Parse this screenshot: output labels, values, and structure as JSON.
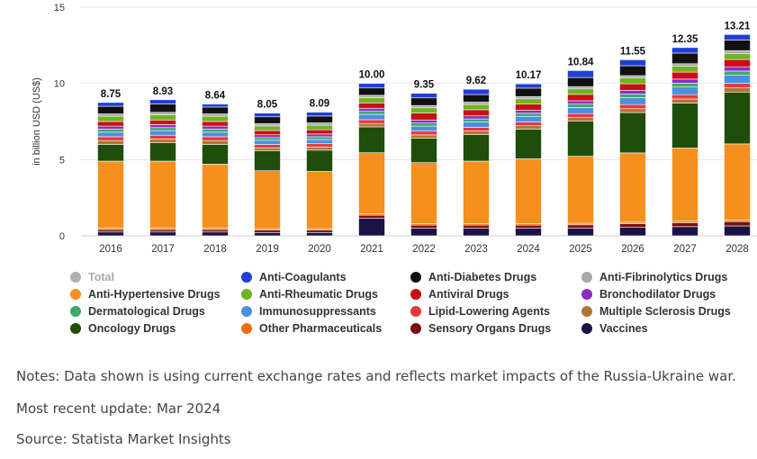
{
  "chart_data": {
    "type": "bar",
    "stacked": true,
    "ylabel": "in billion USD (US$)",
    "ylim": [
      0,
      15
    ],
    "yticks": [
      0,
      5,
      10,
      15
    ],
    "grid": true,
    "legend_position": "bottom",
    "categories": [
      "2016",
      "2017",
      "2018",
      "2019",
      "2020",
      "2021",
      "2022",
      "2023",
      "2024",
      "2025",
      "2026",
      "2027",
      "2028"
    ],
    "totals": [
      8.75,
      8.93,
      8.64,
      8.05,
      8.09,
      10.0,
      9.35,
      9.62,
      10.17,
      10.84,
      11.55,
      12.35,
      13.21
    ],
    "total_labels": [
      "8.75",
      "8.93",
      "8.64",
      "8.05",
      "8.09",
      "10.00",
      "9.35",
      "9.62",
      "10.17",
      "10.84",
      "11.55",
      "12.35",
      "13.21"
    ],
    "series": [
      {
        "name": "Vaccines",
        "color": "#1a1446",
        "values": [
          0.25,
          0.25,
          0.25,
          0.22,
          0.22,
          1.15,
          0.5,
          0.5,
          0.5,
          0.5,
          0.55,
          0.6,
          0.65
        ]
      },
      {
        "name": "Sensory Organs Drugs",
        "color": "#7a0f12",
        "values": [
          0.15,
          0.15,
          0.15,
          0.15,
          0.15,
          0.2,
          0.2,
          0.2,
          0.2,
          0.22,
          0.24,
          0.26,
          0.28
        ]
      },
      {
        "name": "Other Pharmaceuticals",
        "color": "#f26c0d",
        "values": [
          0.1,
          0.1,
          0.1,
          0.1,
          0.1,
          0.1,
          0.1,
          0.1,
          0.1,
          0.1,
          0.1,
          0.1,
          0.1
        ]
      },
      {
        "name": "Anti-Hypertensive Drugs",
        "color": "#f5901e",
        "values": [
          4.4,
          4.4,
          4.2,
          3.8,
          3.75,
          4.0,
          4.0,
          4.1,
          4.25,
          4.4,
          4.55,
          4.8,
          5.0
        ]
      },
      {
        "name": "Oncology Drugs",
        "color": "#1f4d0a",
        "values": [
          1.1,
          1.2,
          1.3,
          1.3,
          1.4,
          1.7,
          1.6,
          1.75,
          1.95,
          2.3,
          2.65,
          2.95,
          3.4
        ]
      },
      {
        "name": "Multiple Sclerosis Drugs",
        "color": "#b07530",
        "values": [
          0.25,
          0.25,
          0.25,
          0.2,
          0.2,
          0.22,
          0.22,
          0.22,
          0.22,
          0.24,
          0.25,
          0.27,
          0.28
        ]
      },
      {
        "name": "Lipid-Lowering Agents",
        "color": "#e8383d",
        "values": [
          0.25,
          0.25,
          0.25,
          0.22,
          0.22,
          0.25,
          0.25,
          0.25,
          0.25,
          0.26,
          0.27,
          0.28,
          0.3
        ]
      },
      {
        "name": "Immunosuppressants",
        "color": "#4c8fe0",
        "values": [
          0.3,
          0.3,
          0.3,
          0.28,
          0.28,
          0.35,
          0.33,
          0.35,
          0.37,
          0.4,
          0.45,
          0.5,
          0.52
        ]
      },
      {
        "name": "Dermatological Drugs",
        "color": "#3aaa6f",
        "values": [
          0.2,
          0.2,
          0.2,
          0.18,
          0.18,
          0.2,
          0.2,
          0.2,
          0.2,
          0.22,
          0.24,
          0.26,
          0.28
        ]
      },
      {
        "name": "Bronchodilator Drugs",
        "color": "#8d2bc4",
        "values": [
          0.2,
          0.2,
          0.2,
          0.18,
          0.18,
          0.2,
          0.2,
          0.2,
          0.2,
          0.22,
          0.24,
          0.26,
          0.28
        ]
      },
      {
        "name": "Antiviral Drugs",
        "color": "#cc0e12",
        "values": [
          0.3,
          0.3,
          0.3,
          0.28,
          0.28,
          0.35,
          0.45,
          0.4,
          0.4,
          0.42,
          0.44,
          0.46,
          0.48
        ]
      },
      {
        "name": "Anti-Rheumatic Drugs",
        "color": "#6eb51f",
        "values": [
          0.35,
          0.35,
          0.35,
          0.3,
          0.3,
          0.35,
          0.35,
          0.35,
          0.35,
          0.36,
          0.37,
          0.38,
          0.4
        ]
      },
      {
        "name": "Anti-Fibrinolytics Drugs",
        "color": "#a7a7a7",
        "values": [
          0.15,
          0.15,
          0.15,
          0.15,
          0.15,
          0.15,
          0.15,
          0.15,
          0.15,
          0.15,
          0.16,
          0.17,
          0.18
        ]
      },
      {
        "name": "Anti-Diabetes Drugs",
        "color": "#111111",
        "values": [
          0.5,
          0.55,
          0.45,
          0.45,
          0.45,
          0.48,
          0.5,
          0.5,
          0.55,
          0.6,
          0.65,
          0.7,
          0.7
        ]
      },
      {
        "name": "Anti-Coagulants",
        "color": "#1f3fd6",
        "values": [
          0.25,
          0.28,
          0.19,
          0.24,
          0.25,
          0.3,
          0.3,
          0.35,
          0.28,
          0.45,
          0.39,
          0.36,
          0.36
        ]
      }
    ],
    "legend": [
      {
        "label": "Total",
        "color": "#b0b0b0",
        "muted": true
      },
      {
        "label": "Anti-Coagulants",
        "color": "#1f3fd6"
      },
      {
        "label": "Anti-Diabetes Drugs",
        "color": "#111111"
      },
      {
        "label": "Anti-Fibrinolytics Drugs",
        "color": "#a7a7a7"
      },
      {
        "label": "Anti-Hypertensive Drugs",
        "color": "#f5901e"
      },
      {
        "label": "Anti-Rheumatic Drugs",
        "color": "#6eb51f"
      },
      {
        "label": "Antiviral Drugs",
        "color": "#cc0e12"
      },
      {
        "label": "Bronchodilator Drugs",
        "color": "#8d2bc4"
      },
      {
        "label": "Dermatological Drugs",
        "color": "#3aaa6f"
      },
      {
        "label": "Immunosuppressants",
        "color": "#4c8fe0"
      },
      {
        "label": "Lipid-Lowering Agents",
        "color": "#e8383d"
      },
      {
        "label": "Multiple Sclerosis Drugs",
        "color": "#b07530"
      },
      {
        "label": "Oncology Drugs",
        "color": "#1f4d0a"
      },
      {
        "label": "Other Pharmaceuticals",
        "color": "#f26c0d"
      },
      {
        "label": "Sensory Organs Drugs",
        "color": "#7a0f12"
      },
      {
        "label": "Vaccines",
        "color": "#1a1446"
      }
    ]
  },
  "notes": {
    "note": "Notes: Data shown is using current exchange rates and reflects market impacts of the Russia-Ukraine war.",
    "update": "Most recent update: Mar 2024",
    "source": "Source: Statista Market Insights"
  }
}
